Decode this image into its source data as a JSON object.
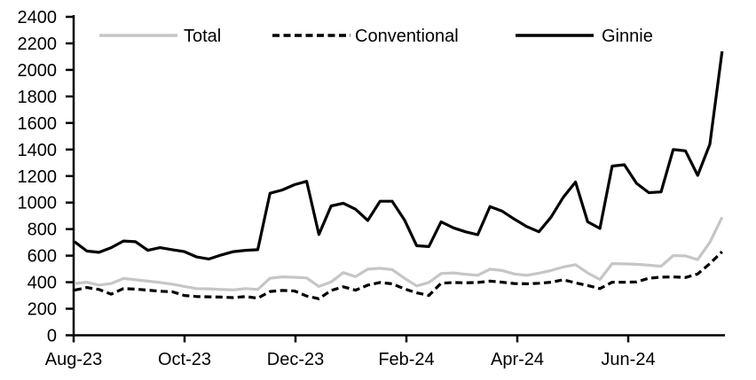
{
  "chart_data": {
    "type": "line",
    "title": "",
    "xlabel": "",
    "ylabel": "",
    "grid": false,
    "background_color": "#ffffff",
    "text_color": "#000000",
    "axis_color": "#000000",
    "legend_position": "top",
    "y_axis": {
      "min": 0,
      "max": 2400,
      "tick_step": 200,
      "tick_labels": [
        "0",
        "200",
        "400",
        "600",
        "800",
        "1000",
        "1200",
        "1400",
        "1600",
        "1800",
        "2000",
        "2200",
        "2400"
      ]
    },
    "x_axis": {
      "tick_labels": [
        "Aug-23",
        "Oct-23",
        "Dec-23",
        "Feb-24",
        "Apr-24",
        "Jun-24"
      ],
      "points_between_ticks": "weekly data, ticks every 2 months"
    },
    "series": [
      {
        "name": "Total",
        "color": "#c6c6c6",
        "line_style": "solid",
        "values": [
          390,
          400,
          378,
          390,
          428,
          418,
          408,
          398,
          385,
          368,
          352,
          350,
          345,
          342,
          352,
          345,
          430,
          440,
          437,
          432,
          368,
          402,
          472,
          442,
          498,
          505,
          495,
          430,
          372,
          398,
          465,
          470,
          460,
          452,
          498,
          488,
          462,
          452,
          468,
          488,
          515,
          532,
          470,
          420,
          540,
          538,
          535,
          528,
          520,
          600,
          598,
          570,
          700,
          890
        ]
      },
      {
        "name": "Conventional",
        "color": "#000000",
        "line_style": "dashed",
        "values": [
          340,
          360,
          345,
          310,
          352,
          348,
          340,
          332,
          328,
          300,
          292,
          290,
          288,
          284,
          292,
          280,
          330,
          338,
          334,
          296,
          275,
          338,
          365,
          340,
          378,
          398,
          388,
          350,
          320,
          300,
          392,
          398,
          395,
          398,
          408,
          400,
          390,
          388,
          392,
          400,
          418,
          395,
          375,
          352,
          400,
          400,
          402,
          430,
          438,
          440,
          435,
          462,
          540,
          630
        ]
      },
      {
        "name": "Ginnie",
        "color": "#000000",
        "line_style": "solid",
        "values": [
          705,
          635,
          625,
          660,
          710,
          705,
          640,
          660,
          645,
          630,
          590,
          575,
          605,
          630,
          640,
          645,
          1070,
          1095,
          1135,
          1160,
          760,
          975,
          995,
          950,
          865,
          1010,
          1010,
          870,
          675,
          668,
          855,
          810,
          780,
          758,
          970,
          935,
          875,
          820,
          780,
          890,
          1040,
          1155,
          855,
          805,
          1275,
          1285,
          1145,
          1075,
          1080,
          1400,
          1390,
          1205,
          1440,
          2140
        ]
      }
    ]
  }
}
